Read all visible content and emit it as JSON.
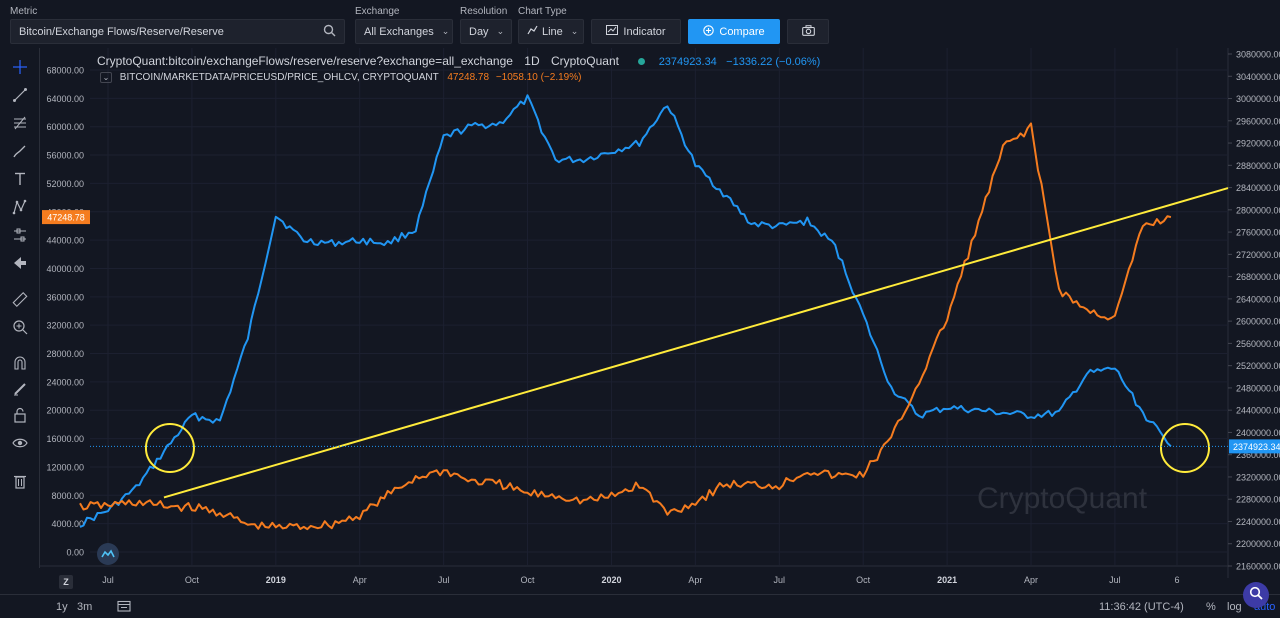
{
  "controls": {
    "metric_label": "Metric",
    "metric_value": "Bitcoin/Exchange Flows/Reserve/Reserve",
    "exchange_label": "Exchange",
    "exchange_value": "All Exchanges",
    "resolution_label": "Resolution",
    "resolution_value": "Day",
    "charttype_label": "Chart Type",
    "charttype_value": "Line",
    "indicator_label": "Indicator",
    "compare_label": "Compare"
  },
  "legend": {
    "main_title": "CryptoQuant:bitcoin/exchangeFlows/reserve/reserve?exchange=all_exchange",
    "interval": "1D",
    "source": "CryptoQuant",
    "main_value": "2374923.34",
    "main_change": "−1336.22 (−0.06%)",
    "secondary_title": "BITCOIN/MARKETDATA/PRICEUSD/PRICE_OHLCV, CRYPTOQUANT",
    "secondary_value": "47248.78",
    "secondary_change": "−1058.10 (−2.19%)"
  },
  "watermark": "CryptoQuant",
  "bottom": {
    "range_1y": "1y",
    "range_3m": "3m",
    "time": "11:36:42 (UTC-4)",
    "percent": "%",
    "log": "log",
    "auto": "auto",
    "z_button": "Z"
  },
  "colors": {
    "background": "#131722",
    "reserve_line": "#2196f3",
    "price_line": "#f57c1f",
    "trend_line": "#ffeb3b",
    "circle": "#ffeb3b"
  },
  "chart_data": {
    "type": "line",
    "x_ticks": [
      "Jul",
      "Oct",
      "2019",
      "Apr",
      "Jul",
      "Oct",
      "2020",
      "Apr",
      "Jul",
      "Oct",
      "2021",
      "Apr",
      "Jul",
      "6"
    ],
    "left_axis": {
      "ticks": [
        "68000.00",
        "64000.00",
        "60000.00",
        "56000.00",
        "52000.00",
        "48000.00",
        "44000.00",
        "40000.00",
        "36000.00",
        "32000.00",
        "28000.00",
        "24000.00",
        "20000.00",
        "16000.00",
        "12000.00",
        "8000.00",
        "4000.00",
        "0.00"
      ],
      "range": [
        0,
        68000
      ],
      "current_label": "47248.78"
    },
    "right_axis": {
      "ticks": [
        "3080000.00",
        "3040000.00",
        "3000000.00",
        "2960000.00",
        "2920000.00",
        "2880000.00",
        "2840000.00",
        "2800000.00",
        "2760000.00",
        "2720000.00",
        "2680000.00",
        "2640000.00",
        "2600000.00",
        "2560000.00",
        "2520000.00",
        "2480000.00",
        "2440000.00",
        "2400000.00",
        "2360000.00",
        "2320000.00",
        "2280000.00",
        "2240000.00",
        "2200000.00",
        "2160000.00"
      ],
      "range": [
        2160000,
        3080000
      ],
      "current_label": "2374923.34"
    },
    "series": [
      {
        "axis": "right",
        "color": "#2196f3",
        "x": [
          "2018-06",
          "2018-07",
          "2018-08",
          "2018-09",
          "2018-10",
          "2018-11",
          "2018-12",
          "2019-01",
          "2019-02",
          "2019-03",
          "2019-04",
          "2019-05",
          "2019-06",
          "2019-07",
          "2019-08",
          "2019-09",
          "2019-10",
          "2019-11",
          "2019-12",
          "2020-01",
          "2020-02",
          "2020-03",
          "2020-04",
          "2020-05",
          "2020-06",
          "2020-07",
          "2020-08",
          "2020-09",
          "2020-10",
          "2020-11",
          "2020-12",
          "2021-01",
          "2021-02",
          "2021-03",
          "2021-04",
          "2021-05",
          "2021-06",
          "2021-07",
          "2021-08",
          "2021-09"
        ],
        "values": [
          2235000,
          2260000,
          2300000,
          2365000,
          2430000,
          2420000,
          2570000,
          2790000,
          2745000,
          2740000,
          2745000,
          2740000,
          2765000,
          2930000,
          2950000,
          2955000,
          3000000,
          2890000,
          2890000,
          2905000,
          2920000,
          2990000,
          2880000,
          2830000,
          2775000,
          2770000,
          2780000,
          2735000,
          2610000,
          2480000,
          2430000,
          2445000,
          2440000,
          2435000,
          2430000,
          2435000,
          2505000,
          2515000,
          2435000,
          2375000
        ]
      },
      {
        "axis": "left",
        "color": "#f57c1f",
        "x": [
          "2018-06",
          "2018-07",
          "2018-08",
          "2018-09",
          "2018-10",
          "2018-11",
          "2018-12",
          "2019-01",
          "2019-02",
          "2019-03",
          "2019-04",
          "2019-05",
          "2019-06",
          "2019-07",
          "2019-08",
          "2019-09",
          "2019-10",
          "2019-11",
          "2019-12",
          "2020-01",
          "2020-02",
          "2020-03",
          "2020-04",
          "2020-05",
          "2020-06",
          "2020-07",
          "2020-08",
          "2020-09",
          "2020-10",
          "2020-11",
          "2020-12",
          "2021-01",
          "2021-02",
          "2021-03",
          "2021-04",
          "2021-05",
          "2021-06",
          "2021-07",
          "2021-08",
          "2021-09"
        ],
        "values": [
          6400,
          6600,
          7000,
          6500,
          6300,
          5600,
          3800,
          3500,
          3600,
          3900,
          5200,
          8000,
          10500,
          11500,
          10000,
          9600,
          8200,
          8000,
          7200,
          7800,
          9500,
          5500,
          7000,
          9500,
          9500,
          9400,
          11500,
          10700,
          11000,
          16000,
          24000,
          33000,
          45000,
          57000,
          60000,
          37000,
          34000,
          33000,
          46000,
          47250
        ]
      }
    ],
    "trend_line": {
      "from": [
        "2018-09",
        7700
      ],
      "to": [
        "2021-09",
        49000
      ]
    },
    "circles": [
      "2018-09",
      "2021-09"
    ]
  }
}
